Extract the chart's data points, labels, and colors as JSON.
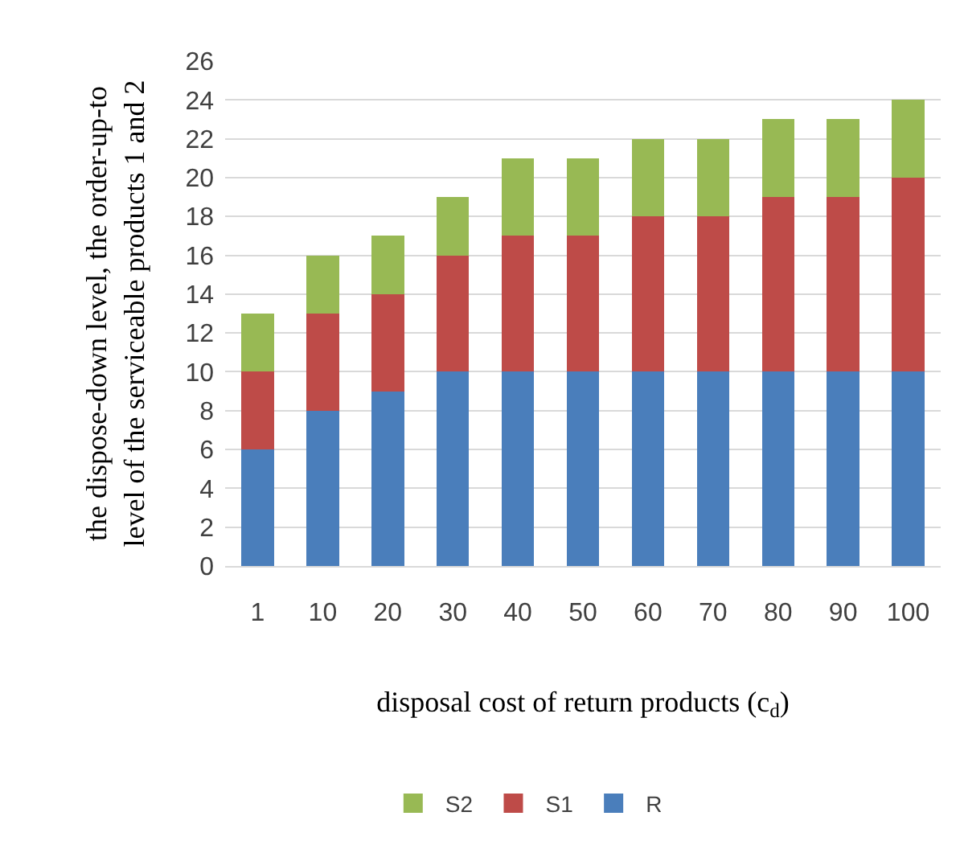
{
  "chart_data": {
    "type": "bar",
    "stacked": true,
    "xlabel": "disposal cost of return products (c$_{d}$)",
    "ylabel": "the dispose-down level, the order-up-to level of the serviceable products 1 and 2",
    "categories": [
      "1",
      "10",
      "20",
      "30",
      "40",
      "50",
      "60",
      "70",
      "80",
      "90",
      "100"
    ],
    "series": [
      {
        "name": "R",
        "color": "#4a7ebb",
        "values": [
          6,
          8,
          9,
          10,
          10,
          10,
          10,
          10,
          10,
          10,
          10
        ]
      },
      {
        "name": "S1",
        "color": "#be4b48",
        "values": [
          4,
          5,
          5,
          6,
          7,
          7,
          8,
          8,
          9,
          9,
          10
        ]
      },
      {
        "name": "S2",
        "color": "#98b954",
        "values": [
          3,
          3,
          3,
          3,
          4,
          4,
          4,
          4,
          4,
          4,
          4
        ]
      }
    ],
    "ylim": [
      0,
      26
    ],
    "yticks": [
      0,
      2,
      4,
      6,
      8,
      10,
      12,
      14,
      16,
      18,
      20,
      22,
      24,
      26
    ],
    "grid": "y",
    "legend": "bottom"
  }
}
